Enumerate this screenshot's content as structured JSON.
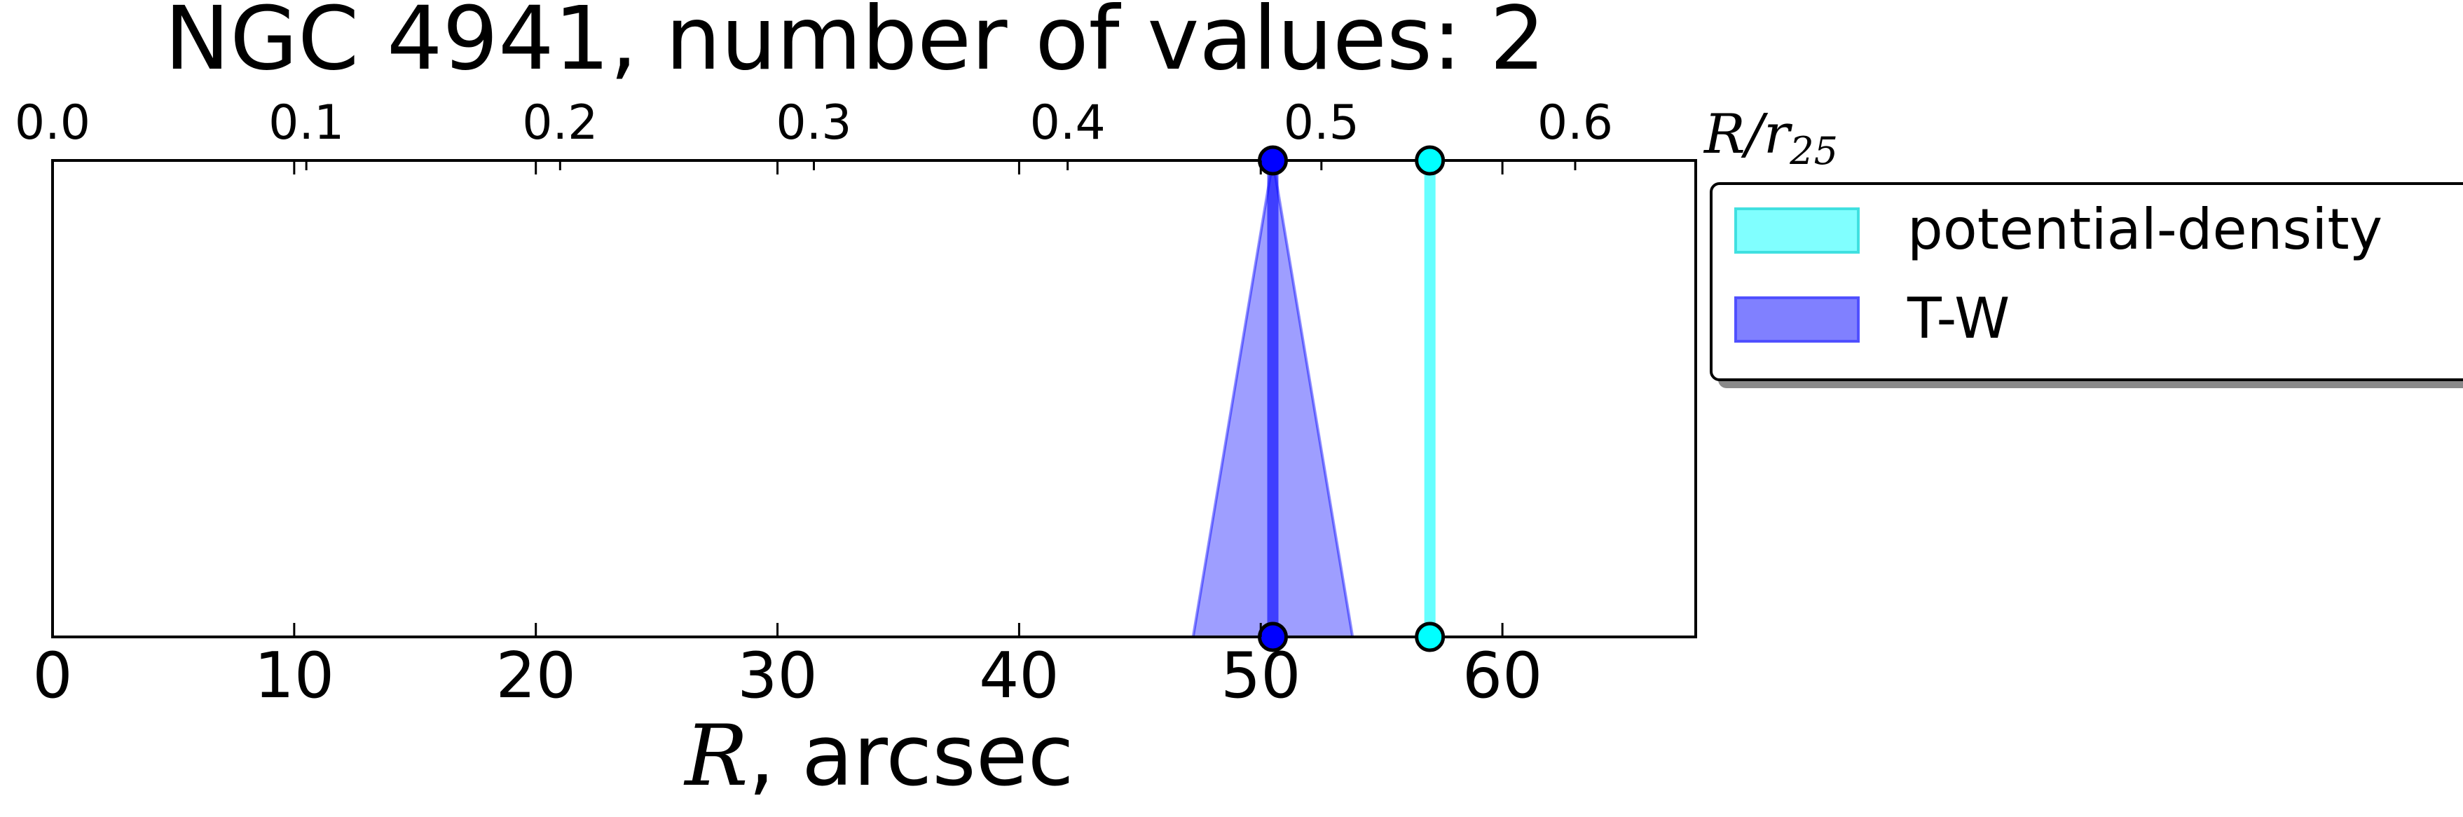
{
  "chart_data": {
    "type": "line",
    "title": "NGC 4941, number of values: 2",
    "xlabel_var": "R",
    "xlabel_rest": ", arcsec",
    "top_xlabel_var": "R/r",
    "top_xlabel_sub": "25",
    "xlim": [
      0,
      68
    ],
    "top_xlim": [
      0,
      0.6475
    ],
    "xticks": [
      0,
      10,
      20,
      30,
      40,
      50,
      60
    ],
    "top_xticks": [
      0.0,
      0.1,
      0.2,
      0.3,
      0.4,
      0.5,
      0.6
    ],
    "xticklabels": [
      "0",
      "10",
      "20",
      "30",
      "40",
      "50",
      "60"
    ],
    "top_xticklabels": [
      "0.0",
      "0.1",
      "0.2",
      "0.3",
      "0.4",
      "0.5",
      "0.6"
    ],
    "grid": false,
    "legend_position": "outside-right-top",
    "series": [
      {
        "name": "potential-density",
        "r": 57.0,
        "err": 0.0,
        "color": "#00ffff"
      },
      {
        "name": "T-W",
        "r": 50.5,
        "err": 3.3,
        "color": "#0000ff"
      }
    ]
  }
}
